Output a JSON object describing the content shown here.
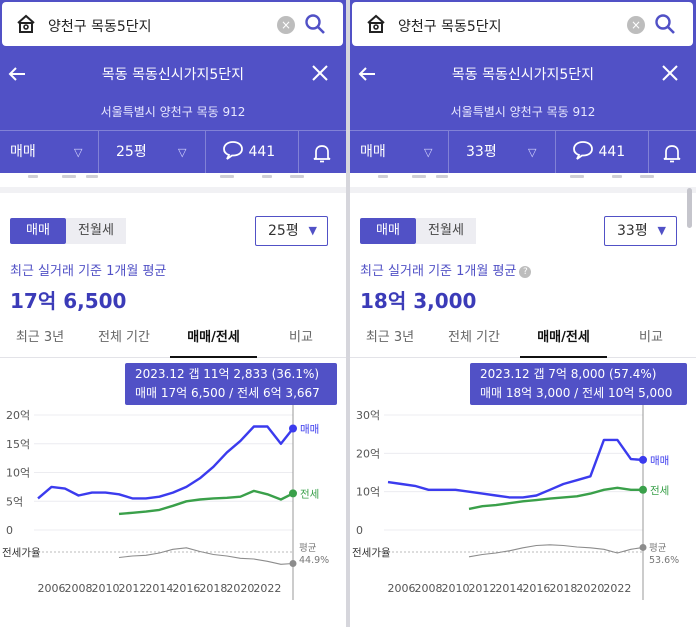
{
  "colors": {
    "brand": "#5151c6",
    "sale": "#3b3bee",
    "jeonse": "#3aa04a",
    "ratio": "#8c8c8c"
  },
  "panels": [
    {
      "search": "양천구 목동5단지",
      "title": "목동 목동신시가지5단지",
      "address": "서울특별시 양천구 목동 912",
      "deal_type": "매매",
      "area": "25평",
      "comments": "441",
      "toggle": [
        "매매",
        "전월세"
      ],
      "size_select": "25평",
      "subtitle": "최근 실거래 기준 1개월 평균",
      "price": "17억 6,500",
      "tabs": [
        "최근 3년",
        "전체 기간",
        "매매/전세",
        "비교"
      ],
      "active_tab": 2,
      "tooltip": {
        "line1": "2023.12  갭 11억 2,833 (36.1%)",
        "line2": "매매 17억 6,500 / 전세 6억 3,667"
      },
      "chart_data": {
        "type": "line",
        "x": [
          2005,
          2006,
          2007,
          2008,
          2009,
          2010,
          2011,
          2012,
          2013,
          2014,
          2015,
          2016,
          2017,
          2018,
          2019,
          2020,
          2021,
          2022,
          2023,
          2023.9
        ],
        "series": [
          {
            "name": "매매",
            "values": [
              5.5,
              7.5,
              7.2,
              6.0,
              6.5,
              6.5,
              6.2,
              5.5,
              5.5,
              5.8,
              6.5,
              7.5,
              9.0,
              11,
              13.5,
              15.5,
              18,
              18,
              15,
              17.65
            ]
          },
          {
            "name": "전세",
            "values": [
              null,
              null,
              null,
              null,
              null,
              null,
              2.8,
              3.0,
              3.2,
              3.5,
              4.2,
              5.0,
              5.3,
              5.5,
              5.6,
              5.8,
              6.8,
              6.2,
              5.3,
              6.37
            ]
          },
          {
            "name": "평균",
            "values": [
              null,
              null,
              null,
              null,
              null,
              null,
              44,
              46,
              47,
              50,
              55,
              57,
              52,
              48,
              46,
              43,
              42,
              39,
              35,
              36
            ]
          }
        ],
        "y_ticks": [
          "20억",
          "15억",
          "10억",
          "5억",
          "0"
        ],
        "ylim": [
          0,
          20
        ],
        "x_ticks": [
          "2006",
          "2008",
          "2010",
          "2012",
          "2014",
          "2016",
          "2018",
          "2020",
          "2022"
        ],
        "ratio_label": "전세가율",
        "avg_label": "평균",
        "avg_value": "44.9%",
        "end_labels": {
          "sale": "매매",
          "jeonse": "전세"
        }
      }
    },
    {
      "search": "양천구 목동5단지",
      "title": "목동 목동신시가지5단지",
      "address": "서울특별시 양천구 목동 912",
      "deal_type": "매매",
      "area": "33평",
      "comments": "441",
      "toggle": [
        "매매",
        "전월세"
      ],
      "size_select": "33평",
      "subtitle": "최근 실거래 기준 1개월 평균",
      "price": "18억 3,000",
      "tabs": [
        "최근 3년",
        "전체 기간",
        "매매/전세",
        "비교"
      ],
      "active_tab": 2,
      "tooltip": {
        "line1": "2023.12  갭 7억 8,000 (57.4%)",
        "line2": "매매 18억 3,000 / 전세 10억 5,000"
      },
      "chart_data": {
        "type": "line",
        "x": [
          2005,
          2006,
          2007,
          2008,
          2009,
          2010,
          2011,
          2012,
          2013,
          2014,
          2015,
          2016,
          2017,
          2018,
          2019,
          2020,
          2021,
          2022,
          2023,
          2023.9
        ],
        "series": [
          {
            "name": "매매",
            "values": [
              12.5,
              12,
              11.5,
              10.5,
              10.5,
              10.5,
              10,
              9.5,
              9,
              8.5,
              8.5,
              9,
              10.5,
              12,
              13,
              14,
              23.5,
              23.5,
              18.5,
              18.3
            ]
          },
          {
            "name": "전세",
            "values": [
              null,
              null,
              null,
              null,
              null,
              null,
              5.5,
              6.2,
              6.5,
              7.0,
              7.5,
              7.8,
              8.2,
              8.5,
              8.8,
              9.5,
              10.5,
              11,
              10.5,
              10.5
            ]
          },
          {
            "name": "평균",
            "values": [
              null,
              null,
              null,
              null,
              null,
              null,
              45,
              48,
              50,
              53,
              57,
              60,
              61,
              60,
              58,
              57,
              55,
              50,
              55,
              57.4
            ]
          }
        ],
        "y_ticks": [
          "30억",
          "20억",
          "10억",
          "0"
        ],
        "ylim": [
          0,
          30
        ],
        "x_ticks": [
          "2006",
          "2008",
          "2010",
          "2012",
          "2014",
          "2016",
          "2018",
          "2020",
          "2022"
        ],
        "ratio_label": "전세가율",
        "avg_label": "평균",
        "avg_value": "53.6%",
        "end_labels": {
          "sale": "매매",
          "jeonse": "전세"
        }
      }
    }
  ]
}
